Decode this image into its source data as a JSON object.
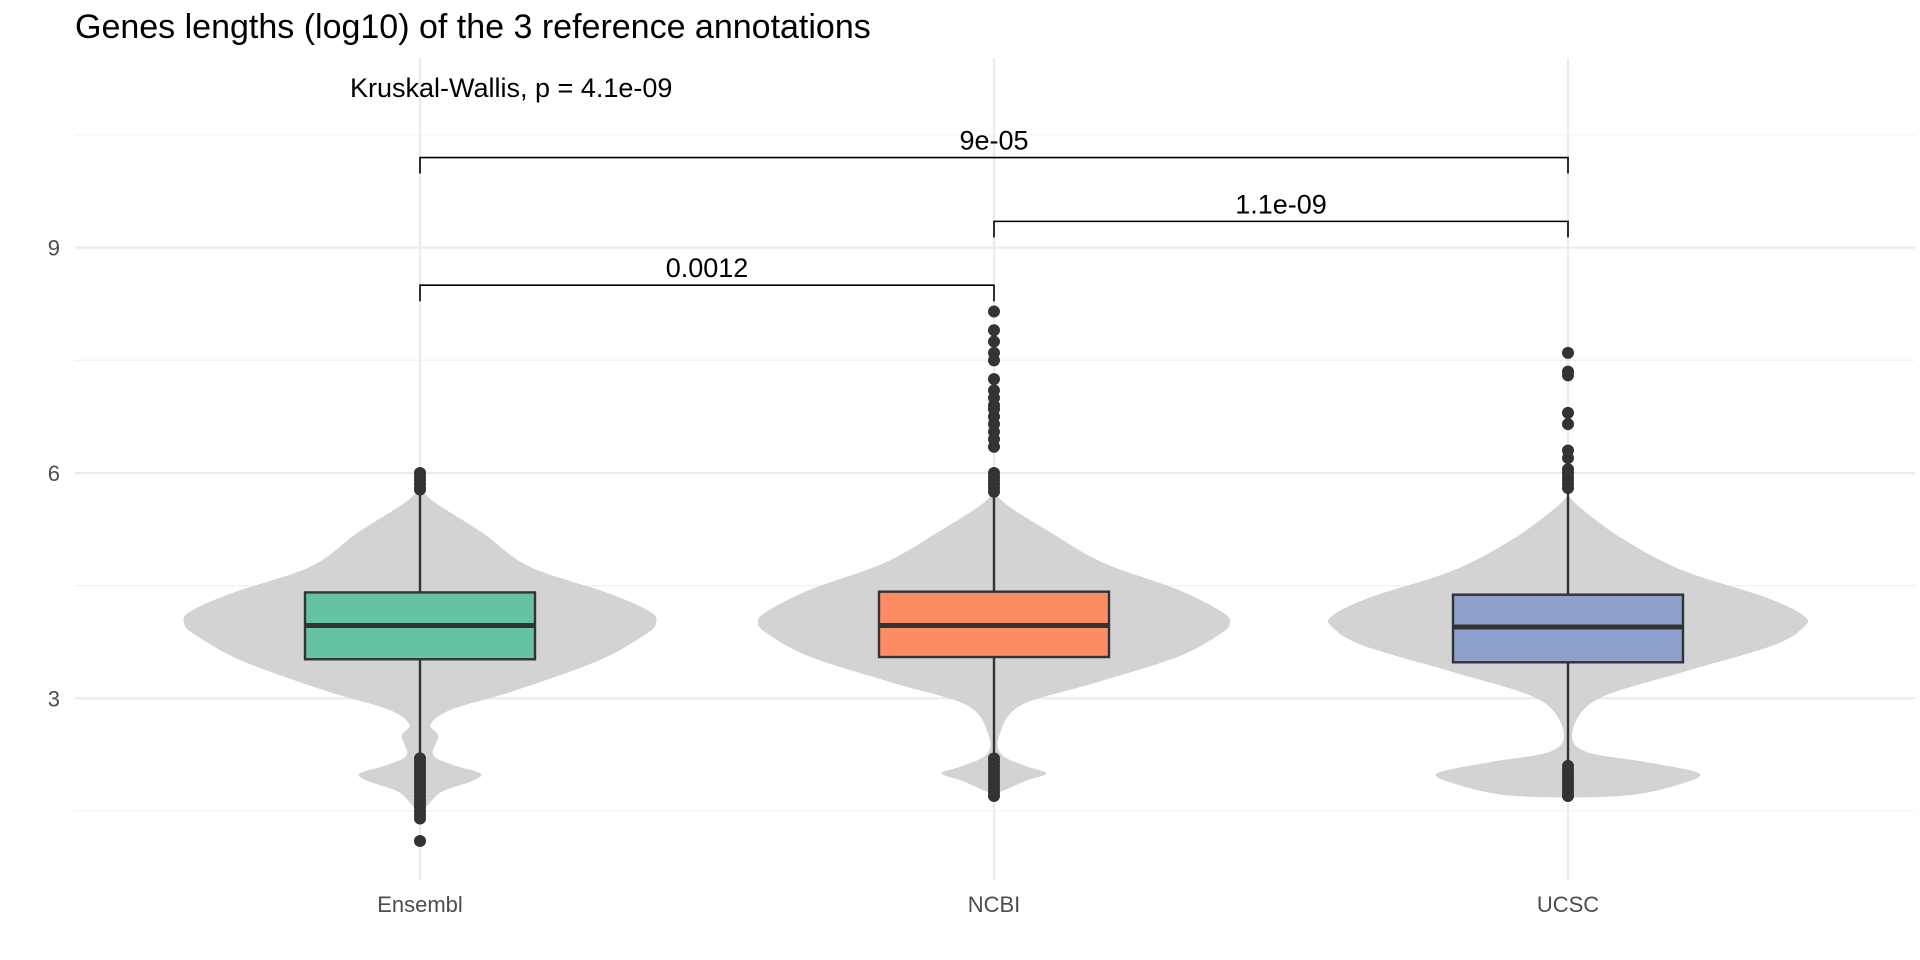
{
  "chart_data": {
    "type": "violin-boxplot",
    "title": "Genes lengths (log10) of the 3 reference annotations",
    "xlabel": "",
    "ylabel": "",
    "categories": [
      "Ensembl",
      "NCBI",
      "UCSC"
    ],
    "colors": [
      "#66c2a5",
      "#fc8d62",
      "#8da0cb"
    ],
    "violin_color": "#d3d3d3",
    "ylim": [
      0.75,
      11
    ],
    "y_ticks": [
      3,
      6,
      9
    ],
    "grid": true,
    "legend": "none",
    "global_test": {
      "label": "Kruskal-Wallis, p = 4.1e-09"
    },
    "comparisons": [
      {
        "pair": [
          "Ensembl",
          "NCBI"
        ],
        "label": "0.0012",
        "y": 8.5
      },
      {
        "pair": [
          "NCBI",
          "UCSC"
        ],
        "label": "1.1e-09",
        "y": 9.35
      },
      {
        "pair": [
          "Ensembl",
          "UCSC"
        ],
        "label": "9e-05",
        "y": 10.2
      }
    ],
    "series": [
      {
        "name": "Ensembl",
        "box": {
          "q1": 3.52,
          "median": 3.97,
          "q3": 4.41,
          "whisker_low": 2.2,
          "whisker_high": 5.75
        },
        "outliers": [
          6.0,
          5.95,
          5.9,
          5.85,
          5.8,
          5.78,
          2.2,
          2.15,
          2.1,
          2.05,
          2.0,
          1.95,
          1.9,
          1.85,
          1.8,
          1.75,
          1.7,
          1.65,
          1.6,
          1.55,
          1.5,
          1.45,
          1.4,
          1.1
        ],
        "density": [
          [
            1.55,
            0.02
          ],
          [
            1.75,
            0.08
          ],
          [
            1.9,
            0.2
          ],
          [
            2.0,
            0.23
          ],
          [
            2.12,
            0.12
          ],
          [
            2.25,
            0.05
          ],
          [
            2.5,
            0.07
          ],
          [
            2.65,
            0.04
          ],
          [
            2.85,
            0.12
          ],
          [
            3.1,
            0.36
          ],
          [
            3.5,
            0.68
          ],
          [
            3.85,
            0.86
          ],
          [
            4.0,
            0.9
          ],
          [
            4.15,
            0.88
          ],
          [
            4.4,
            0.72
          ],
          [
            4.75,
            0.42
          ],
          [
            5.2,
            0.24
          ],
          [
            5.6,
            0.06
          ],
          [
            5.8,
            0.0
          ]
        ]
      },
      {
        "name": "NCBI",
        "box": {
          "q1": 3.55,
          "median": 3.97,
          "q3": 4.42,
          "whisker_low": 2.2,
          "whisker_high": 5.75
        },
        "outliers": [
          8.15,
          7.9,
          7.75,
          7.6,
          7.5,
          7.25,
          7.1,
          7.0,
          6.9,
          6.85,
          6.75,
          6.65,
          6.55,
          6.45,
          6.35,
          6.0,
          5.95,
          5.9,
          5.85,
          5.8,
          5.75,
          2.2,
          2.15,
          2.1,
          2.05,
          2.0,
          1.95,
          1.9,
          1.85,
          1.8,
          1.75,
          1.7
        ],
        "density": [
          [
            1.75,
            0.02
          ],
          [
            1.9,
            0.12
          ],
          [
            2.0,
            0.2
          ],
          [
            2.1,
            0.12
          ],
          [
            2.25,
            0.03
          ],
          [
            2.5,
            0.02
          ],
          [
            2.9,
            0.1
          ],
          [
            3.2,
            0.38
          ],
          [
            3.55,
            0.7
          ],
          [
            3.85,
            0.86
          ],
          [
            4.0,
            0.9
          ],
          [
            4.15,
            0.87
          ],
          [
            4.45,
            0.7
          ],
          [
            4.8,
            0.42
          ],
          [
            5.2,
            0.22
          ],
          [
            5.6,
            0.04
          ],
          [
            5.8,
            0.0
          ]
        ]
      },
      {
        "name": "UCSC",
        "box": {
          "q1": 3.48,
          "median": 3.95,
          "q3": 4.38,
          "whisker_low": 2.1,
          "whisker_high": 5.8
        },
        "outliers": [
          7.6,
          7.35,
          7.3,
          6.8,
          6.65,
          6.3,
          6.2,
          6.05,
          6.0,
          5.95,
          5.9,
          5.85,
          5.8,
          2.1,
          2.05,
          2.0,
          1.95,
          1.9,
          1.85,
          1.8,
          1.75,
          1.7
        ],
        "density": [
          [
            1.7,
            0.2
          ],
          [
            1.85,
            0.42
          ],
          [
            2.0,
            0.5
          ],
          [
            2.15,
            0.3
          ],
          [
            2.3,
            0.06
          ],
          [
            2.6,
            0.02
          ],
          [
            3.0,
            0.12
          ],
          [
            3.35,
            0.44
          ],
          [
            3.7,
            0.78
          ],
          [
            3.95,
            0.9
          ],
          [
            4.1,
            0.9
          ],
          [
            4.35,
            0.75
          ],
          [
            4.7,
            0.44
          ],
          [
            5.1,
            0.22
          ],
          [
            5.5,
            0.06
          ],
          [
            5.7,
            0.0
          ]
        ]
      }
    ]
  }
}
